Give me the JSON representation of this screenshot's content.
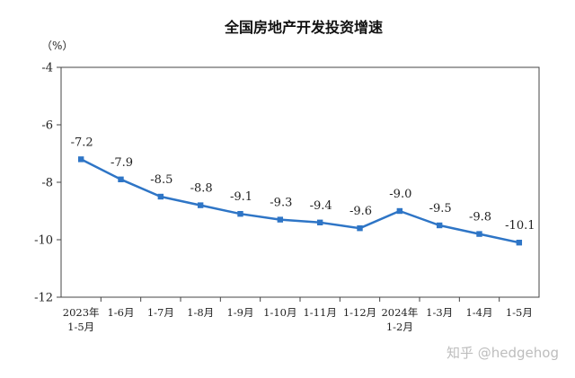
{
  "chart_data": {
    "type": "line",
    "title": "全国房地产开发投资增速",
    "unit_label": "（%）",
    "categories": [
      [
        "2023年",
        "1-5月"
      ],
      [
        "1-6月"
      ],
      [
        "1-7月"
      ],
      [
        "1-8月"
      ],
      [
        "1-9月"
      ],
      [
        "1-10月"
      ],
      [
        "1-11月"
      ],
      [
        "1-12月"
      ],
      [
        "2024年",
        "1-2月"
      ],
      [
        "1-3月"
      ],
      [
        "1-4月"
      ],
      [
        "1-5月"
      ]
    ],
    "values": [
      -7.2,
      -7.9,
      -8.5,
      -8.8,
      -9.1,
      -9.3,
      -9.4,
      -9.6,
      -9.0,
      -9.5,
      -9.8,
      -10.1
    ],
    "data_labels": [
      "-7.2",
      "-7.9",
      "-8.5",
      "-8.8",
      "-9.1",
      "-9.3",
      "-9.4",
      "-9.6",
      "-9.0",
      "-9.5",
      "-9.8",
      "-10.1"
    ],
    "ylim": [
      -12,
      -4
    ],
    "yticks": [
      -4,
      -6,
      -8,
      -10,
      -12
    ],
    "ytick_labels": [
      "-4",
      "-6",
      "-8",
      "-10",
      "-12"
    ],
    "grid": false,
    "line_color": "#2e75c6"
  },
  "watermark": "知乎 @hedgehog"
}
